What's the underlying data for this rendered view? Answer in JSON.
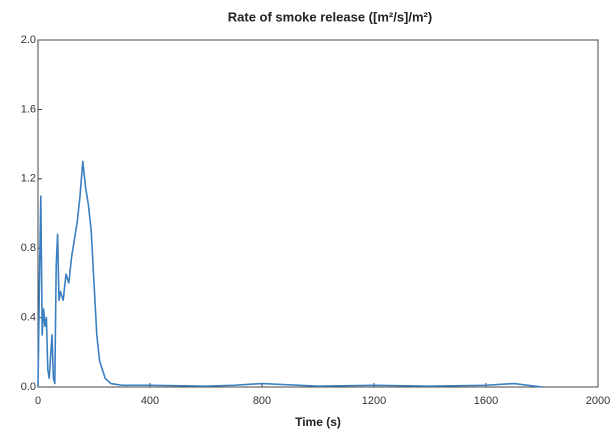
{
  "chart_data": {
    "type": "line",
    "title": "Rate of smoke release ([m²/s]/m²)",
    "xlabel": "Time (s)",
    "x": [
      0,
      5,
      10,
      15,
      20,
      25,
      30,
      35,
      40,
      50,
      55,
      60,
      65,
      70,
      75,
      80,
      90,
      100,
      110,
      120,
      130,
      140,
      150,
      160,
      170,
      180,
      190,
      200,
      210,
      220,
      240,
      260,
      300,
      400,
      600,
      700,
      800,
      1000,
      1200,
      1400,
      1600,
      1700,
      1800
    ],
    "series": [
      {
        "color": "#3a7fc1",
        "values": [
          0,
          0.6,
          1.1,
          0.3,
          0.45,
          0.35,
          0.4,
          0.1,
          0.05,
          0.3,
          0.05,
          0.02,
          0.7,
          0.88,
          0.5,
          0.55,
          0.5,
          0.65,
          0.6,
          0.75,
          0.85,
          0.95,
          1.1,
          1.3,
          1.15,
          1.05,
          0.9,
          0.6,
          0.3,
          0.15,
          0.05,
          0.02,
          0.01,
          0.01,
          0.005,
          0.01,
          0.02,
          0.005,
          0.01,
          0.005,
          0.01,
          0.02,
          0
        ]
      }
    ],
    "xlim": [
      0,
      2000
    ],
    "xticks": [
      0,
      400,
      800,
      1200,
      1600,
      2000
    ],
    "ylim": [
      0,
      2
    ],
    "yticks": [
      {
        "value": 0,
        "label": "0.0"
      },
      0.4,
      0.8,
      1.2,
      1.6,
      {
        "value": 2,
        "label": "2.0"
      }
    ]
  }
}
